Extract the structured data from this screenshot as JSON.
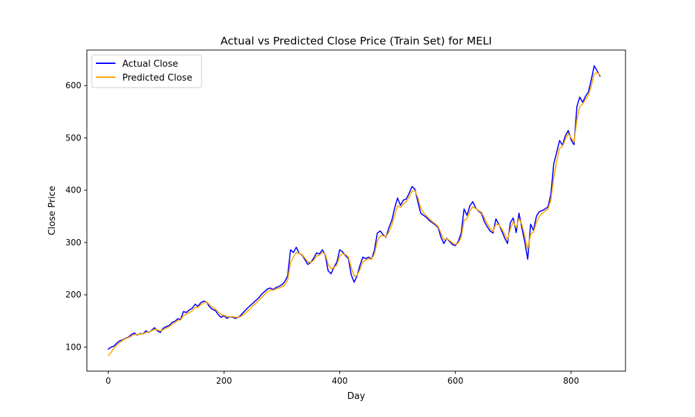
{
  "chart_data": {
    "type": "line",
    "title": "Actual vs Predicted Close Price (Train Set) for MELI",
    "xlabel": "Day",
    "ylabel": "Close Price",
    "xlim": [
      -37,
      894
    ],
    "ylim": [
      54,
      668
    ],
    "xticks": [
      0,
      200,
      400,
      600,
      800
    ],
    "yticks": [
      100,
      200,
      300,
      400,
      500,
      600
    ],
    "grid": false,
    "legend_position": "top-left",
    "series": [
      {
        "name": "Actual Close",
        "color": "#0000ff",
        "x": [
          0,
          5,
          10,
          15,
          20,
          25,
          30,
          35,
          40,
          45,
          50,
          55,
          60,
          65,
          70,
          75,
          80,
          85,
          90,
          95,
          100,
          105,
          110,
          115,
          120,
          125,
          130,
          135,
          140,
          145,
          150,
          155,
          160,
          165,
          170,
          175,
          180,
          185,
          190,
          195,
          200,
          205,
          210,
          215,
          220,
          225,
          230,
          235,
          240,
          245,
          250,
          255,
          260,
          265,
          270,
          275,
          280,
          285,
          290,
          295,
          300,
          305,
          310,
          315,
          320,
          325,
          330,
          335,
          340,
          345,
          350,
          355,
          360,
          365,
          370,
          375,
          380,
          385,
          390,
          395,
          400,
          405,
          410,
          415,
          420,
          425,
          430,
          435,
          440,
          445,
          450,
          455,
          460,
          465,
          470,
          475,
          480,
          485,
          490,
          495,
          500,
          505,
          510,
          515,
          520,
          525,
          530,
          535,
          540,
          545,
          550,
          555,
          560,
          565,
          570,
          575,
          580,
          585,
          590,
          595,
          600,
          605,
          610,
          615,
          620,
          625,
          630,
          635,
          640,
          645,
          650,
          655,
          660,
          665,
          670,
          675,
          680,
          685,
          690,
          695,
          700,
          705,
          710,
          715,
          720,
          725,
          730,
          735,
          740,
          745,
          750,
          755,
          760,
          765,
          770,
          775,
          780,
          785,
          790,
          795,
          800,
          805,
          810,
          815,
          820,
          825,
          830,
          835,
          840,
          845,
          850
        ],
        "y": [
          96,
          100,
          102,
          108,
          112,
          114,
          117,
          119,
          124,
          127,
          123,
          126,
          125,
          131,
          128,
          132,
          137,
          131,
          128,
          136,
          139,
          141,
          147,
          149,
          154,
          153,
          168,
          166,
          171,
          174,
          182,
          178,
          185,
          188,
          186,
          177,
          172,
          170,
          162,
          157,
          160,
          155,
          158,
          157,
          155,
          157,
          162,
          168,
          174,
          179,
          184,
          189,
          194,
          201,
          206,
          211,
          213,
          210,
          214,
          216,
          219,
          225,
          236,
          286,
          281,
          291,
          279,
          276,
          267,
          258,
          262,
          270,
          280,
          278,
          286,
          276,
          246,
          240,
          253,
          262,
          286,
          282,
          275,
          269,
          238,
          224,
          236,
          256,
          272,
          269,
          272,
          268,
          285,
          318,
          322,
          315,
          310,
          328,
          342,
          366,
          385,
          371,
          381,
          383,
          394,
          407,
          402,
          378,
          356,
          352,
          348,
          342,
          338,
          334,
          329,
          310,
          298,
          308,
          302,
          296,
          294,
          302,
          318,
          364,
          352,
          370,
          378,
          366,
          360,
          356,
          340,
          330,
          322,
          318,
          345,
          335,
          322,
          309,
          298,
          338,
          347,
          319,
          356,
          327,
          300,
          268,
          335,
          323,
          350,
          359,
          361,
          364,
          368,
          392,
          451,
          472,
          495,
          486,
          504,
          514,
          496,
          487,
          560,
          578,
          568,
          580,
          588,
          612,
          638,
          628,
          618
        ]
      },
      {
        "name": "Predicted Close",
        "color": "#ffa500",
        "x": [
          0,
          5,
          10,
          15,
          20,
          25,
          30,
          35,
          40,
          45,
          50,
          55,
          60,
          65,
          70,
          75,
          80,
          85,
          90,
          95,
          100,
          105,
          110,
          115,
          120,
          125,
          130,
          135,
          140,
          145,
          150,
          155,
          160,
          165,
          170,
          175,
          180,
          185,
          190,
          195,
          200,
          205,
          210,
          215,
          220,
          225,
          230,
          235,
          240,
          245,
          250,
          255,
          260,
          265,
          270,
          275,
          280,
          285,
          290,
          295,
          300,
          305,
          310,
          315,
          320,
          325,
          330,
          335,
          340,
          345,
          350,
          355,
          360,
          365,
          370,
          375,
          380,
          385,
          390,
          395,
          400,
          405,
          410,
          415,
          420,
          425,
          430,
          435,
          440,
          445,
          450,
          455,
          460,
          465,
          470,
          475,
          480,
          485,
          490,
          495,
          500,
          505,
          510,
          515,
          520,
          525,
          530,
          535,
          540,
          545,
          550,
          555,
          560,
          565,
          570,
          575,
          580,
          585,
          590,
          595,
          600,
          605,
          610,
          615,
          620,
          625,
          630,
          635,
          640,
          645,
          650,
          655,
          660,
          665,
          670,
          675,
          680,
          685,
          690,
          695,
          700,
          705,
          710,
          715,
          720,
          725,
          730,
          735,
          740,
          745,
          750,
          755,
          760,
          765,
          770,
          775,
          780,
          785,
          790,
          795,
          800,
          805,
          810,
          815,
          820,
          825,
          830,
          835,
          840,
          845,
          850
        ],
        "y": [
          84,
          90,
          98,
          104,
          109,
          113,
          116,
          118,
          121,
          124,
          124,
          125,
          125,
          128,
          129,
          131,
          134,
          133,
          131,
          133,
          136,
          139,
          143,
          147,
          151,
          152,
          160,
          163,
          166,
          169,
          176,
          176,
          181,
          185,
          186,
          181,
          176,
          173,
          167,
          162,
          161,
          158,
          158,
          158,
          157,
          157,
          159,
          163,
          168,
          173,
          179,
          184,
          189,
          195,
          200,
          206,
          209,
          209,
          211,
          213,
          215,
          219,
          228,
          262,
          272,
          281,
          279,
          277,
          270,
          263,
          262,
          266,
          274,
          276,
          281,
          278,
          259,
          250,
          252,
          257,
          274,
          279,
          277,
          272,
          252,
          236,
          237,
          248,
          263,
          266,
          269,
          268,
          278,
          302,
          313,
          313,
          311,
          320,
          333,
          352,
          370,
          367,
          374,
          378,
          387,
          398,
          399,
          386,
          366,
          357,
          351,
          345,
          340,
          336,
          331,
          318,
          305,
          307,
          304,
          299,
          296,
          299,
          310,
          342,
          346,
          360,
          368,
          365,
          361,
          358,
          347,
          336,
          327,
          321,
          335,
          334,
          326,
          316,
          305,
          326,
          340,
          328,
          346,
          334,
          312,
          287,
          316,
          320,
          338,
          350,
          356,
          360,
          364,
          381,
          425,
          455,
          480,
          484,
          497,
          508,
          500,
          492,
          535,
          560,
          565,
          574,
          582,
          600,
          622,
          625,
          620
        ]
      }
    ]
  }
}
